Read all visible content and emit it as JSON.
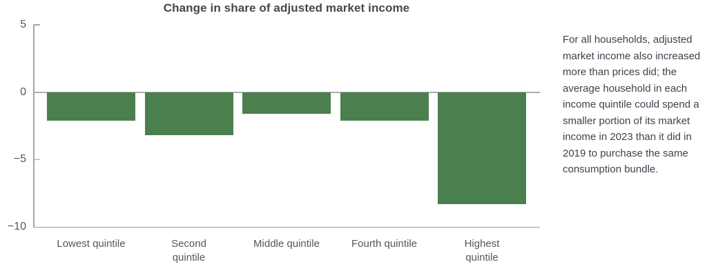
{
  "chart_data": {
    "type": "bar",
    "title": "Change in share of adjusted market income",
    "categories": [
      "Lowest quintile",
      "Second quintile",
      "Middle quintile",
      "Fourth quintile",
      "Highest quintile"
    ],
    "values": [
      -2.1,
      -3.2,
      -1.6,
      -2.1,
      -8.3
    ],
    "xlabel": "",
    "ylabel": "",
    "ylim": [
      -10,
      5
    ],
    "yticks": [
      5,
      0,
      -5,
      -10
    ],
    "grid": "zero-line-only",
    "legend": "none",
    "bar_color": "#4b7f4e"
  },
  "annotation": {
    "text": "For all households, adjusted market income also increased more than prices did; the average household in each income quintile could spend a smaller portion of its market income in 2023 than it did in 2019 to purchase the same consumption bundle."
  }
}
